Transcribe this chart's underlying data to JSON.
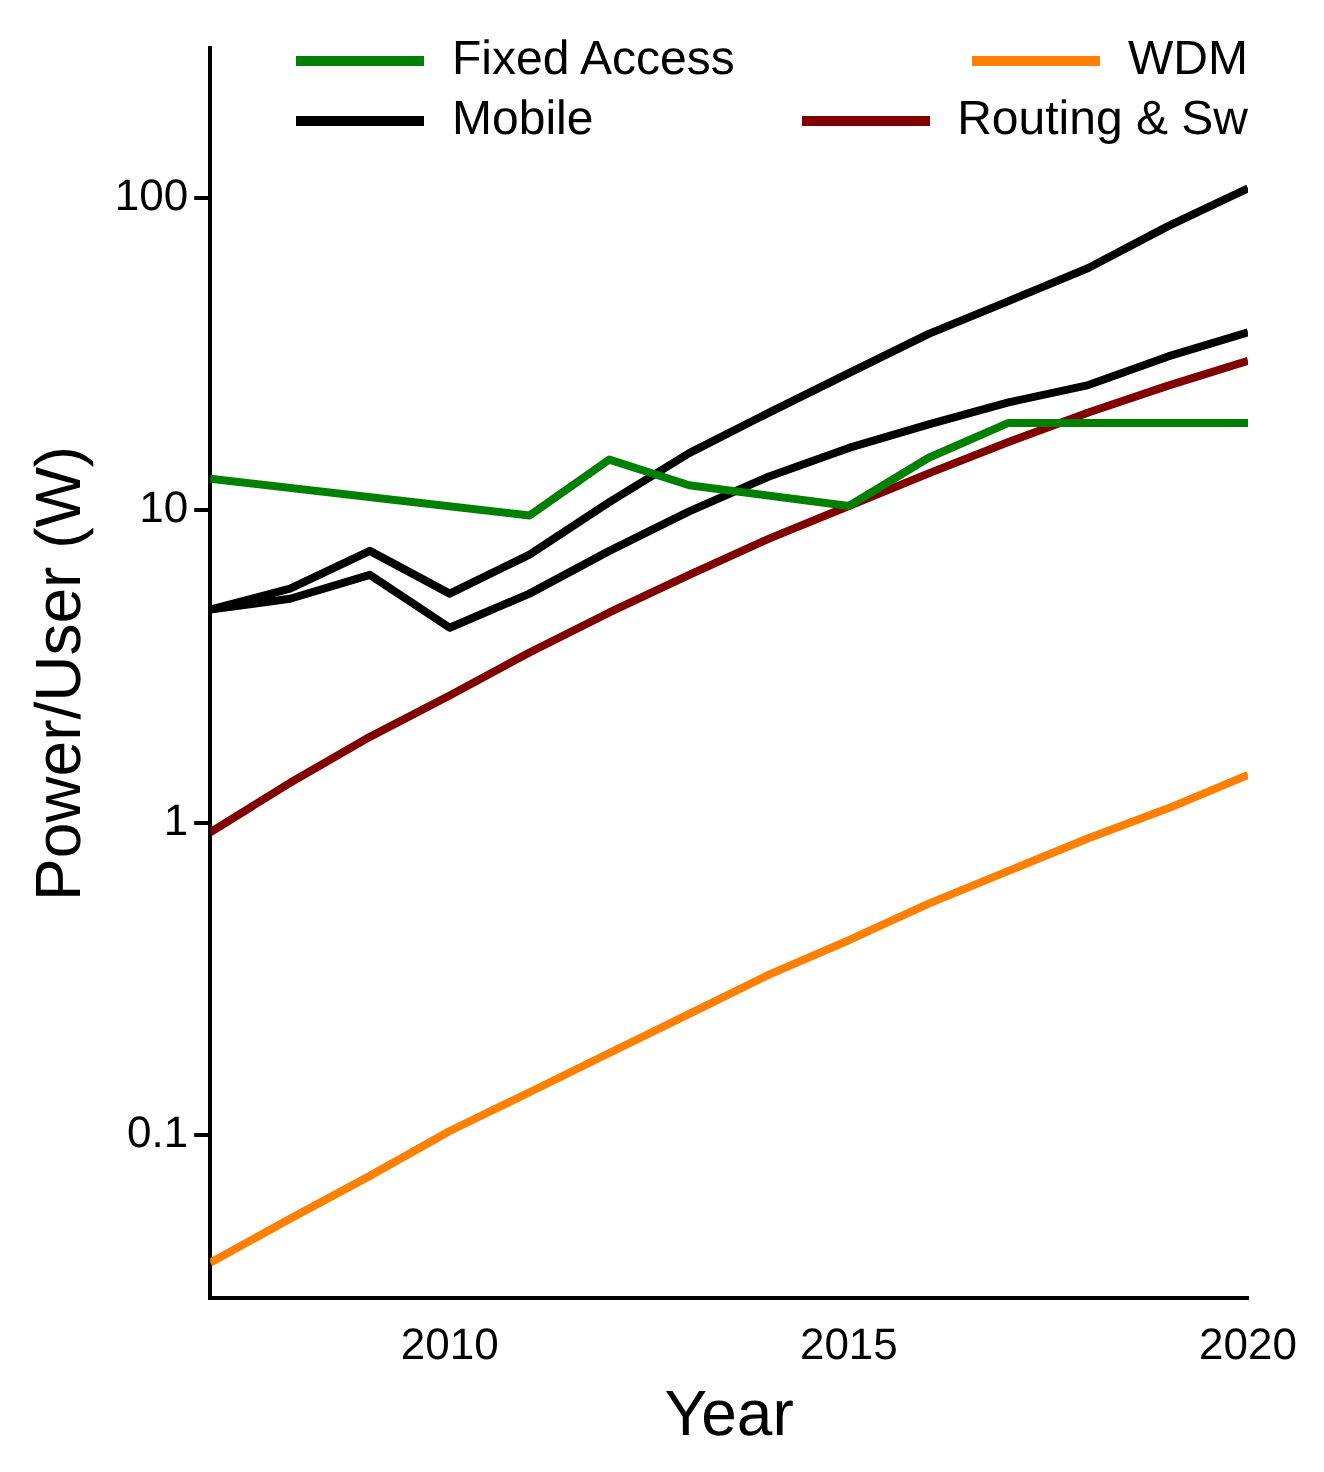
{
  "chart_data": {
    "type": "line",
    "xlabel": "Year",
    "ylabel": "Power/User (W)",
    "log": "y",
    "x": [
      2007,
      2008,
      2009,
      2010,
      2011,
      2012,
      2013,
      2014,
      2015,
      2016,
      2017,
      2018,
      2019,
      2020
    ],
    "xlim": [
      2007,
      2020
    ],
    "xticks": [
      2010,
      2015,
      2020
    ],
    "ylim": [
      0.03,
      300
    ],
    "yticks": [
      0.1,
      1,
      10,
      100
    ],
    "grid": false,
    "legend": "top",
    "line_style": "solid",
    "marker": "none",
    "series": [
      {
        "name": "Fixed Access",
        "color": "#008000",
        "values": [
          12.6,
          null,
          null,
          null,
          9.6,
          14.5,
          12,
          null,
          10.3,
          14.7,
          19,
          null,
          null,
          19
        ]
      },
      {
        "name": "WDM",
        "color": "#ff8000",
        "values": [
          0.039,
          0.054,
          0.074,
          0.103,
          0.137,
          0.183,
          0.244,
          0.326,
          0.42,
          0.55,
          0.7,
          0.89,
          1.11,
          1.42
        ]
      },
      {
        "name": "Mobile",
        "color": "#000000",
        "values": [
          4.8,
          5.6,
          7.4,
          5.4,
          7.2,
          10.6,
          15.2,
          20.5,
          27.4,
          36.6,
          46.6,
          59.5,
          81,
          107
        ]
      },
      {
        "name": "Routing & Sw",
        "color": "#800000",
        "values": [
          0.93,
          1.34,
          1.88,
          2.55,
          3.5,
          4.7,
          6.2,
          8.1,
          10.3,
          13.1,
          16.5,
          20.5,
          25,
          30
        ]
      },
      {
        "color": "#000000",
        "values": [
          4.8,
          5.2,
          6.2,
          4.2,
          5.4,
          7.4,
          9.9,
          12.8,
          15.8,
          18.8,
          22.1,
          25.1,
          31,
          37
        ]
      }
    ]
  }
}
